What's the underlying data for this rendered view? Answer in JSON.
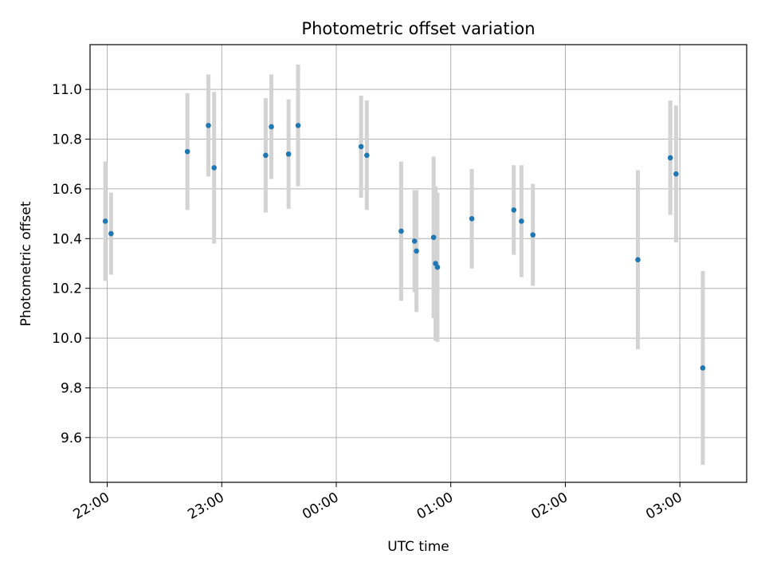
{
  "chart_data": {
    "type": "scatter",
    "title": "Photometric offset variation",
    "xlabel": "UTC time",
    "ylabel": "Photometric offset",
    "x_unit": "UTC time (hh:mm)",
    "xlim": [
      "21:51",
      "03:35"
    ],
    "ylim": [
      9.42,
      11.18
    ],
    "x_ticks": [
      "22:00",
      "23:00",
      "00:00",
      "01:00",
      "02:00",
      "03:00"
    ],
    "y_ticks": [
      9.6,
      9.8,
      10.0,
      10.2,
      10.4,
      10.6,
      10.8,
      11.0
    ],
    "y_tick_labels": [
      "9.6",
      "9.8",
      "10.0",
      "10.2",
      "10.4",
      "10.6",
      "10.8",
      "11.0"
    ],
    "grid": true,
    "marker_color": "#1f77b4",
    "errorbar_color": "#d3d3d3",
    "points": [
      {
        "t": "21:59",
        "y": 10.47,
        "err": 0.24
      },
      {
        "t": "22:02",
        "y": 10.42,
        "err": 0.165
      },
      {
        "t": "22:42",
        "y": 10.75,
        "err": 0.235
      },
      {
        "t": "22:53",
        "y": 10.855,
        "err": 0.205
      },
      {
        "t": "22:56",
        "y": 10.685,
        "err": 0.305
      },
      {
        "t": "23:23",
        "y": 10.735,
        "err": 0.23
      },
      {
        "t": "23:26",
        "y": 10.85,
        "err": 0.21
      },
      {
        "t": "23:35",
        "y": 10.74,
        "err": 0.22
      },
      {
        "t": "23:40",
        "y": 10.855,
        "err": 0.245
      },
      {
        "t": "00:13",
        "y": 10.77,
        "err": 0.205
      },
      {
        "t": "00:16",
        "y": 10.735,
        "err": 0.22
      },
      {
        "t": "00:34",
        "y": 10.43,
        "err": 0.28
      },
      {
        "t": "00:41",
        "y": 10.39,
        "err": 0.205
      },
      {
        "t": "00:42",
        "y": 10.35,
        "err": 0.245
      },
      {
        "t": "00:51",
        "y": 10.405,
        "err": 0.325
      },
      {
        "t": "00:52",
        "y": 10.3,
        "err": 0.31
      },
      {
        "t": "00:53",
        "y": 10.285,
        "err": 0.3
      },
      {
        "t": "01:11",
        "y": 10.48,
        "err": 0.2
      },
      {
        "t": "01:33",
        "y": 10.515,
        "err": 0.18
      },
      {
        "t": "01:37",
        "y": 10.47,
        "err": 0.225
      },
      {
        "t": "01:43",
        "y": 10.415,
        "err": 0.205
      },
      {
        "t": "02:38",
        "y": 10.315,
        "err": 0.36
      },
      {
        "t": "02:55",
        "y": 10.725,
        "err": 0.23
      },
      {
        "t": "02:58",
        "y": 10.66,
        "err": 0.275
      },
      {
        "t": "03:12",
        "y": 9.88,
        "err": 0.39
      }
    ]
  }
}
